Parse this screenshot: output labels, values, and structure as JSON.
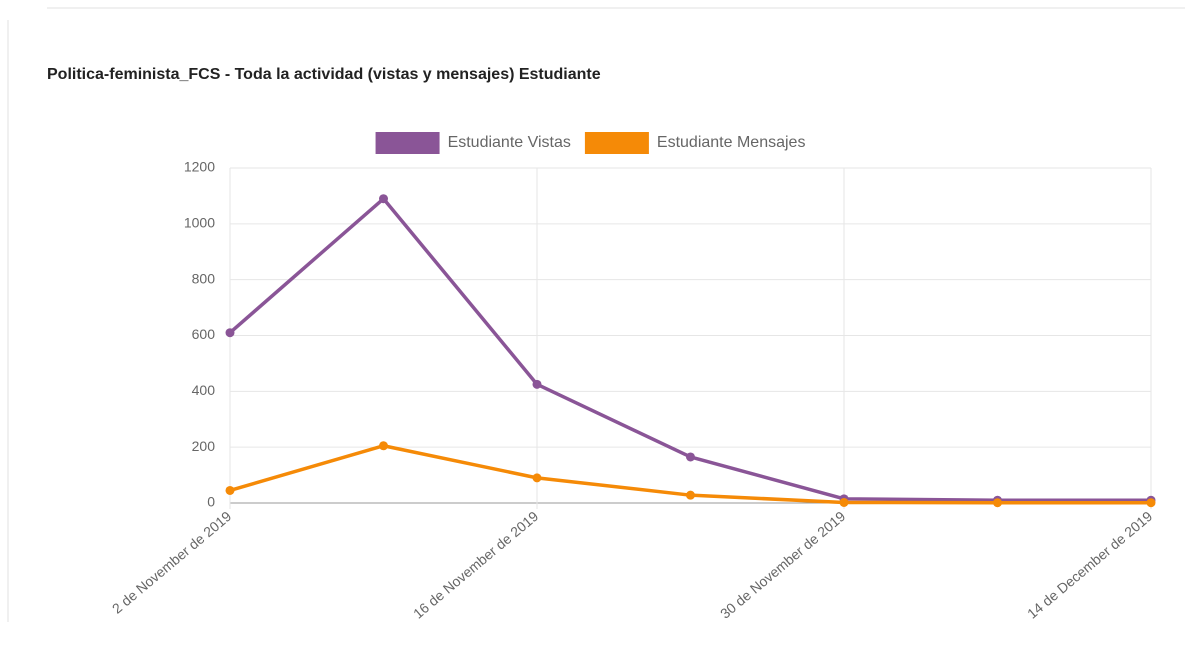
{
  "chart_data": {
    "type": "line",
    "title": "Politica-feminista_FCS - Toda la actividad (vistas y mensajes) Estudiante",
    "categories": [
      "2 de November de 2019",
      null,
      "16 de November de 2019",
      null,
      "30 de November de 2019",
      null,
      "14 de December de 2019"
    ],
    "series": [
      {
        "name": "Estudiante Vistas",
        "color": "#8a5597",
        "values": [
          610,
          1090,
          425,
          165,
          15,
          10,
          10
        ]
      },
      {
        "name": "Estudiante Mensajes",
        "color": "#f58a07",
        "values": [
          45,
          205,
          90,
          28,
          2,
          1,
          1
        ]
      }
    ],
    "ylim": [
      0,
      1200
    ],
    "yticks": [
      0,
      200,
      400,
      600,
      800,
      1000,
      1200
    ],
    "grid": true,
    "legend": "top"
  }
}
